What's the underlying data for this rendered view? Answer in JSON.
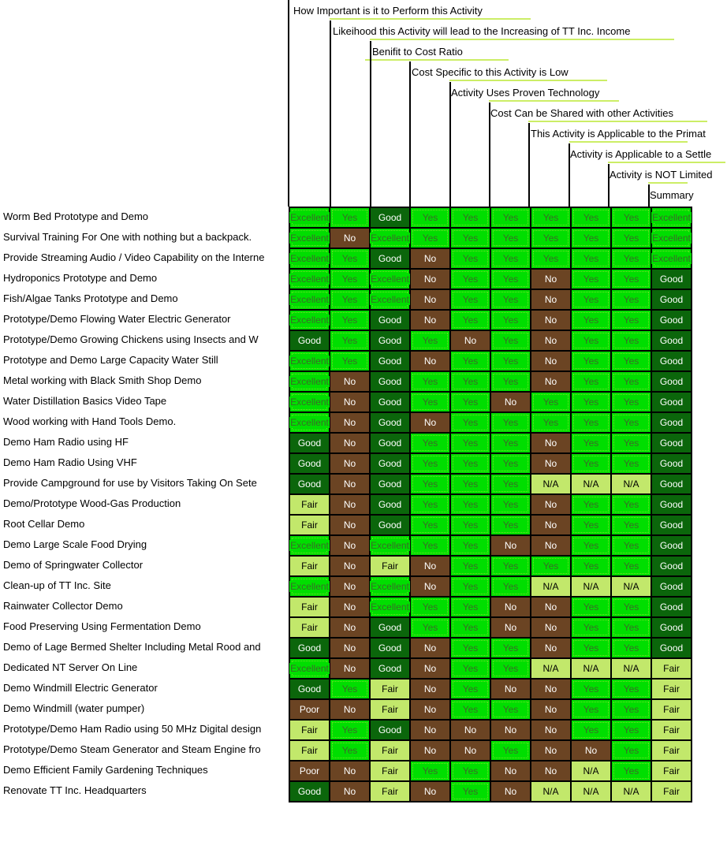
{
  "matrix": {
    "columns": [
      {
        "label": "How Important is it to Perform this Activity"
      },
      {
        "label": "Likeihood this Activity will lead to the Increasing of TT Inc. Income"
      },
      {
        "label": "Benifit  to Cost Ratio"
      },
      {
        "label": "Cost Specific to this Activity is Low"
      },
      {
        "label": "Activity Uses Proven Technology"
      },
      {
        "label": "Cost Can be Shared with other Activities"
      },
      {
        "label": "This Activity is Applicable to the Primat"
      },
      {
        "label": "Activity is Applicable to a Settle"
      },
      {
        "label": "Activity is NOT Limited"
      },
      {
        "label": "Summary"
      }
    ],
    "rows": [
      {
        "label": "Worm Bed Prototype and Demo",
        "values": [
          "Excellent",
          "Yes",
          "Good",
          "Yes",
          "Yes",
          "Yes",
          "Yes",
          "Yes",
          "Yes",
          "Excellent"
        ]
      },
      {
        "label": "Survival Training For One with nothing but a backpack.",
        "values": [
          "Excellent",
          "No",
          "Excellent",
          "Yes",
          "Yes",
          "Yes",
          "Yes",
          "Yes",
          "Yes",
          "Excellent"
        ]
      },
      {
        "label": "Provide Streaming Audio / Video Capability on the Interne",
        "values": [
          "Excellent",
          "Yes",
          "Good",
          "No",
          "Yes",
          "Yes",
          "Yes",
          "Yes",
          "Yes",
          "Excellent"
        ]
      },
      {
        "label": "Hydroponics Prototype and Demo",
        "values": [
          "Excellent",
          "Yes",
          "Excellent",
          "No",
          "Yes",
          "Yes",
          "No",
          "Yes",
          "Yes",
          "Good"
        ]
      },
      {
        "label": "Fish/Algae Tanks Prototype and Demo",
        "values": [
          "Excellent",
          "Yes",
          "Excellent",
          "No",
          "Yes",
          "Yes",
          "No",
          "Yes",
          "Yes",
          "Good"
        ]
      },
      {
        "label": "Prototype/Demo Flowing Water Electric Generator",
        "values": [
          "Excellent",
          "Yes",
          "Good",
          "No",
          "Yes",
          "Yes",
          "No",
          "Yes",
          "Yes",
          "Good"
        ]
      },
      {
        "label": "Prototype/Demo Growing Chickens using Insects and W",
        "values": [
          "Good",
          "Yes",
          "Good",
          "Yes",
          "No",
          "Yes",
          "No",
          "Yes",
          "Yes",
          "Good"
        ]
      },
      {
        "label": "Prototype and Demo Large Capacity Water Still",
        "values": [
          "Excellent",
          "Yes",
          "Good",
          "No",
          "Yes",
          "Yes",
          "No",
          "Yes",
          "Yes",
          "Good"
        ]
      },
      {
        "label": "Metal working with Black Smith Shop Demo",
        "values": [
          "Excellent",
          "No",
          "Good",
          "Yes",
          "Yes",
          "Yes",
          "No",
          "Yes",
          "Yes",
          "Good"
        ]
      },
      {
        "label": "Water Distillation Basics Video Tape",
        "values": [
          "Excellent",
          "No",
          "Good",
          "Yes",
          "Yes",
          "No",
          "Yes",
          "Yes",
          "Yes",
          "Good"
        ]
      },
      {
        "label": "Wood working with Hand Tools Demo.",
        "values": [
          "Excellent",
          "No",
          "Good",
          "No",
          "Yes",
          "Yes",
          "Yes",
          "Yes",
          "Yes",
          "Good"
        ]
      },
      {
        "label": "Demo Ham Radio using HF",
        "values": [
          "Good",
          "No",
          "Good",
          "Yes",
          "Yes",
          "Yes",
          "No",
          "Yes",
          "Yes",
          "Good"
        ]
      },
      {
        "label": "Demo Ham Radio Using VHF",
        "values": [
          "Good",
          "No",
          "Good",
          "Yes",
          "Yes",
          "Yes",
          "No",
          "Yes",
          "Yes",
          "Good"
        ]
      },
      {
        "label": "Provide Campground for use by Visitors Taking On Sete",
        "values": [
          "Good",
          "No",
          "Good",
          "Yes",
          "Yes",
          "Yes",
          "N/A",
          "N/A",
          "N/A",
          "Good"
        ]
      },
      {
        "label": "Demo/Prototype Wood-Gas Production",
        "values": [
          "Fair",
          "No",
          "Good",
          "Yes",
          "Yes",
          "Yes",
          "No",
          "Yes",
          "Yes",
          "Good"
        ]
      },
      {
        "label": "Root Cellar Demo",
        "values": [
          "Fair",
          "No",
          "Good",
          "Yes",
          "Yes",
          "Yes",
          "No",
          "Yes",
          "Yes",
          "Good"
        ]
      },
      {
        "label": "Demo Large Scale Food Drying",
        "values": [
          "Excellent",
          "No",
          "Excellent",
          "Yes",
          "Yes",
          "No",
          "No",
          "Yes",
          "Yes",
          "Good"
        ]
      },
      {
        "label": "Demo of Springwater Collector",
        "values": [
          "Fair",
          "No",
          "Fair",
          "No",
          "Yes",
          "Yes",
          "Yes",
          "Yes",
          "Yes",
          "Good"
        ]
      },
      {
        "label": "Clean-up of TT Inc. Site",
        "values": [
          "Excellent",
          "No",
          "Excellent",
          "No",
          "Yes",
          "Yes",
          "N/A",
          "N/A",
          "N/A",
          "Good"
        ]
      },
      {
        "label": "Rainwater Collector Demo",
        "values": [
          "Fair",
          "No",
          "Excellent",
          "Yes",
          "Yes",
          "No",
          "No",
          "Yes",
          "Yes",
          "Good"
        ]
      },
      {
        "label": "Food Preserving Using Fermentation Demo",
        "values": [
          "Fair",
          "No",
          "Good",
          "Yes",
          "Yes",
          "No",
          "No",
          "Yes",
          "Yes",
          "Good"
        ]
      },
      {
        "label": "Demo of Lage Bermed Shelter Including Metal Rood and",
        "values": [
          "Good",
          "No",
          "Good",
          "No",
          "Yes",
          "Yes",
          "No",
          "Yes",
          "Yes",
          "Good"
        ]
      },
      {
        "label": "Dedicated NT Server On Line",
        "values": [
          "Excellent",
          "No",
          "Good",
          "No",
          "Yes",
          "Yes",
          "N/A",
          "N/A",
          "N/A",
          "Fair"
        ]
      },
      {
        "label": "Demo Windmill Electric Generator",
        "values": [
          "Good",
          "Yes",
          "Fair",
          "No",
          "Yes",
          "No",
          "No",
          "Yes",
          "Yes",
          "Fair"
        ]
      },
      {
        "label": "Demo Windmill (water pumper)",
        "values": [
          "Poor",
          "No",
          "Fair",
          "No",
          "Yes",
          "Yes",
          "No",
          "Yes",
          "Yes",
          "Fair"
        ]
      },
      {
        "label": "Prototype/Demo Ham Radio using 50 MHz Digital design",
        "values": [
          "Fair",
          "Yes",
          "Good",
          "No",
          "No",
          "No",
          "No",
          "Yes",
          "Yes",
          "Fair"
        ]
      },
      {
        "label": "Prototype/Demo Steam Generator and Steam Engine fro",
        "values": [
          "Fair",
          "Yes",
          "Fair",
          "No",
          "No",
          "Yes",
          "No",
          "No",
          "Yes",
          "Fair"
        ]
      },
      {
        "label": "Demo Efficient Family Gardening Techniques",
        "values": [
          "Poor",
          "No",
          "Fair",
          "Yes",
          "Yes",
          "No",
          "No",
          "N/A",
          "Yes",
          "Fair"
        ]
      },
      {
        "label": "Renovate TT Inc. Headquarters",
        "values": [
          "Good",
          "No",
          "Fair",
          "No",
          "Yes",
          "No",
          "N/A",
          "N/A",
          "N/A",
          "Fair"
        ]
      }
    ]
  },
  "colors": {
    "bright_green": "#00DE00",
    "dark_green": "#0B660B",
    "brown": "#6B4423",
    "yellow_green": "#C2E86B",
    "underline": "#CCEE66",
    "text_on_bright": "#3A6B28",
    "text_on_dark": "#FFFFFF",
    "text_on_yellow": "#000000"
  },
  "value_styles": {
    "Excellent": {
      "bg": "bright_green",
      "fg": "text_on_bright"
    },
    "Yes": {
      "bg": "bright_green",
      "fg": "text_on_bright"
    },
    "Good": {
      "bg": "dark_green",
      "fg": "text_on_dark"
    },
    "No": {
      "bg": "brown",
      "fg": "text_on_dark"
    },
    "Poor": {
      "bg": "brown",
      "fg": "text_on_dark"
    },
    "Fair": {
      "bg": "yellow_green",
      "fg": "text_on_yellow"
    },
    "N/A": {
      "bg": "yellow_green",
      "fg": "text_on_yellow"
    }
  }
}
